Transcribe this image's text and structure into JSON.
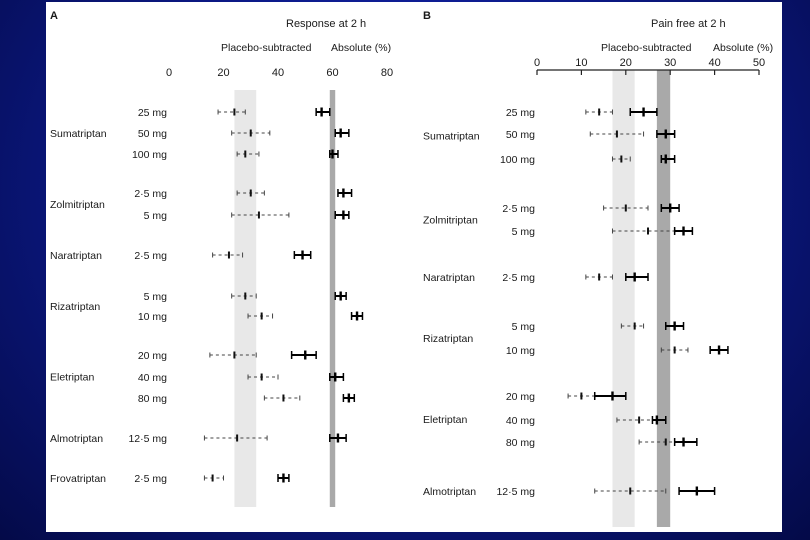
{
  "chart_data": [
    {
      "panel": "A",
      "title": "Response at 2 h",
      "type": "forest",
      "subtitles": [
        "Placebo-subtracted",
        "Absolute (%)"
      ],
      "ticks": [
        "0",
        "20",
        "40",
        "60",
        "80"
      ],
      "xlim": [
        0,
        80
      ],
      "band_placebo_subtracted": [
        24,
        32
      ],
      "band_absolute": [
        59,
        61
      ],
      "rows": [
        {
          "drug": "Sumatriptan",
          "dose": "25 mg",
          "ps": [
            18,
            24,
            28
          ],
          "abs": [
            54,
            56,
            59
          ]
        },
        {
          "drug": "",
          "dose": "50 mg",
          "ps": [
            23,
            30,
            37
          ],
          "abs": [
            61,
            63,
            66
          ]
        },
        {
          "drug": "",
          "dose": "100 mg",
          "ps": [
            25,
            28,
            33
          ],
          "abs": [
            59,
            60,
            62
          ]
        },
        {
          "drug": "Zolmitriptan",
          "dose": "2·5 mg",
          "ps": [
            25,
            30,
            35
          ],
          "abs": [
            62,
            64,
            67
          ]
        },
        {
          "drug": "",
          "dose": "5 mg",
          "ps": [
            23,
            33,
            44
          ],
          "abs": [
            61,
            64,
            66
          ]
        },
        {
          "drug": "Naratriptan",
          "dose": "2·5 mg",
          "ps": [
            16,
            22,
            27
          ],
          "abs": [
            46,
            49,
            52
          ]
        },
        {
          "drug": "Rizatriptan",
          "dose": "5 mg",
          "ps": [
            23,
            28,
            32
          ],
          "abs": [
            61,
            63,
            65
          ]
        },
        {
          "drug": "",
          "dose": "10 mg",
          "ps": [
            29,
            34,
            38
          ],
          "abs": [
            67,
            69,
            71
          ]
        },
        {
          "drug": "Eletriptan",
          "dose": "20 mg",
          "ps": [
            15,
            24,
            32
          ],
          "abs": [
            45,
            50,
            54
          ]
        },
        {
          "drug": "",
          "dose": "40 mg",
          "ps": [
            29,
            34,
            40
          ],
          "abs": [
            59,
            61,
            64
          ]
        },
        {
          "drug": "",
          "dose": "80 mg",
          "ps": [
            35,
            42,
            48
          ],
          "abs": [
            64,
            66,
            68
          ]
        },
        {
          "drug": "Almotriptan",
          "dose": "12·5 mg",
          "ps": [
            13,
            25,
            36
          ],
          "abs": [
            59,
            62,
            65
          ]
        },
        {
          "drug": "Frovatriptan",
          "dose": "2·5 mg",
          "ps": [
            13,
            16,
            20
          ],
          "abs": [
            40,
            42,
            44
          ]
        }
      ]
    },
    {
      "panel": "B",
      "title": "Pain free at 2 h",
      "type": "forest",
      "subtitles": [
        "Placebo-subtracted",
        "Absolute (%)"
      ],
      "ticks": [
        "0",
        "10",
        "20",
        "30",
        "40",
        "50"
      ],
      "xlim": [
        0,
        50
      ],
      "band_placebo_subtracted": [
        17,
        22
      ],
      "band_absolute": [
        27,
        30
      ],
      "rows": [
        {
          "drug": "Sumatriptan",
          "dose": "25 mg",
          "ps": [
            11,
            14,
            17
          ],
          "abs": [
            21,
            24,
            27
          ]
        },
        {
          "drug": "",
          "dose": "50 mg",
          "ps": [
            12,
            18,
            24
          ],
          "abs": [
            27,
            29,
            31
          ]
        },
        {
          "drug": "",
          "dose": "100 mg",
          "ps": [
            17,
            19,
            21
          ],
          "abs": [
            28,
            29,
            31
          ]
        },
        {
          "drug": "Zolmitriptan",
          "dose": "2·5 mg",
          "ps": [
            15,
            20,
            25
          ],
          "abs": [
            28,
            30,
            32
          ]
        },
        {
          "drug": "",
          "dose": "5 mg",
          "ps": [
            17,
            25,
            31
          ],
          "abs": [
            31,
            33,
            35
          ]
        },
        {
          "drug": "Naratriptan",
          "dose": "2·5 mg",
          "ps": [
            11,
            14,
            17
          ],
          "abs": [
            20,
            22,
            25
          ]
        },
        {
          "drug": "Rizatriptan",
          "dose": "5 mg",
          "ps": [
            19,
            22,
            24
          ],
          "abs": [
            29,
            31,
            33
          ]
        },
        {
          "drug": "",
          "dose": "10 mg",
          "ps": [
            28,
            31,
            34
          ],
          "abs": [
            39,
            41,
            43
          ]
        },
        {
          "drug": "Eletriptan",
          "dose": "20 mg",
          "ps": [
            7,
            10,
            13
          ],
          "abs": [
            13,
            17,
            20
          ]
        },
        {
          "drug": "",
          "dose": "40 mg",
          "ps": [
            18,
            23,
            27
          ],
          "abs": [
            26,
            27,
            29
          ]
        },
        {
          "drug": "",
          "dose": "80 mg",
          "ps": [
            23,
            29,
            33
          ],
          "abs": [
            31,
            33,
            36
          ]
        },
        {
          "drug": "Almotriptan",
          "dose": "12·5 mg",
          "ps": [
            13,
            21,
            29
          ],
          "abs": [
            32,
            36,
            40
          ]
        }
      ]
    }
  ]
}
